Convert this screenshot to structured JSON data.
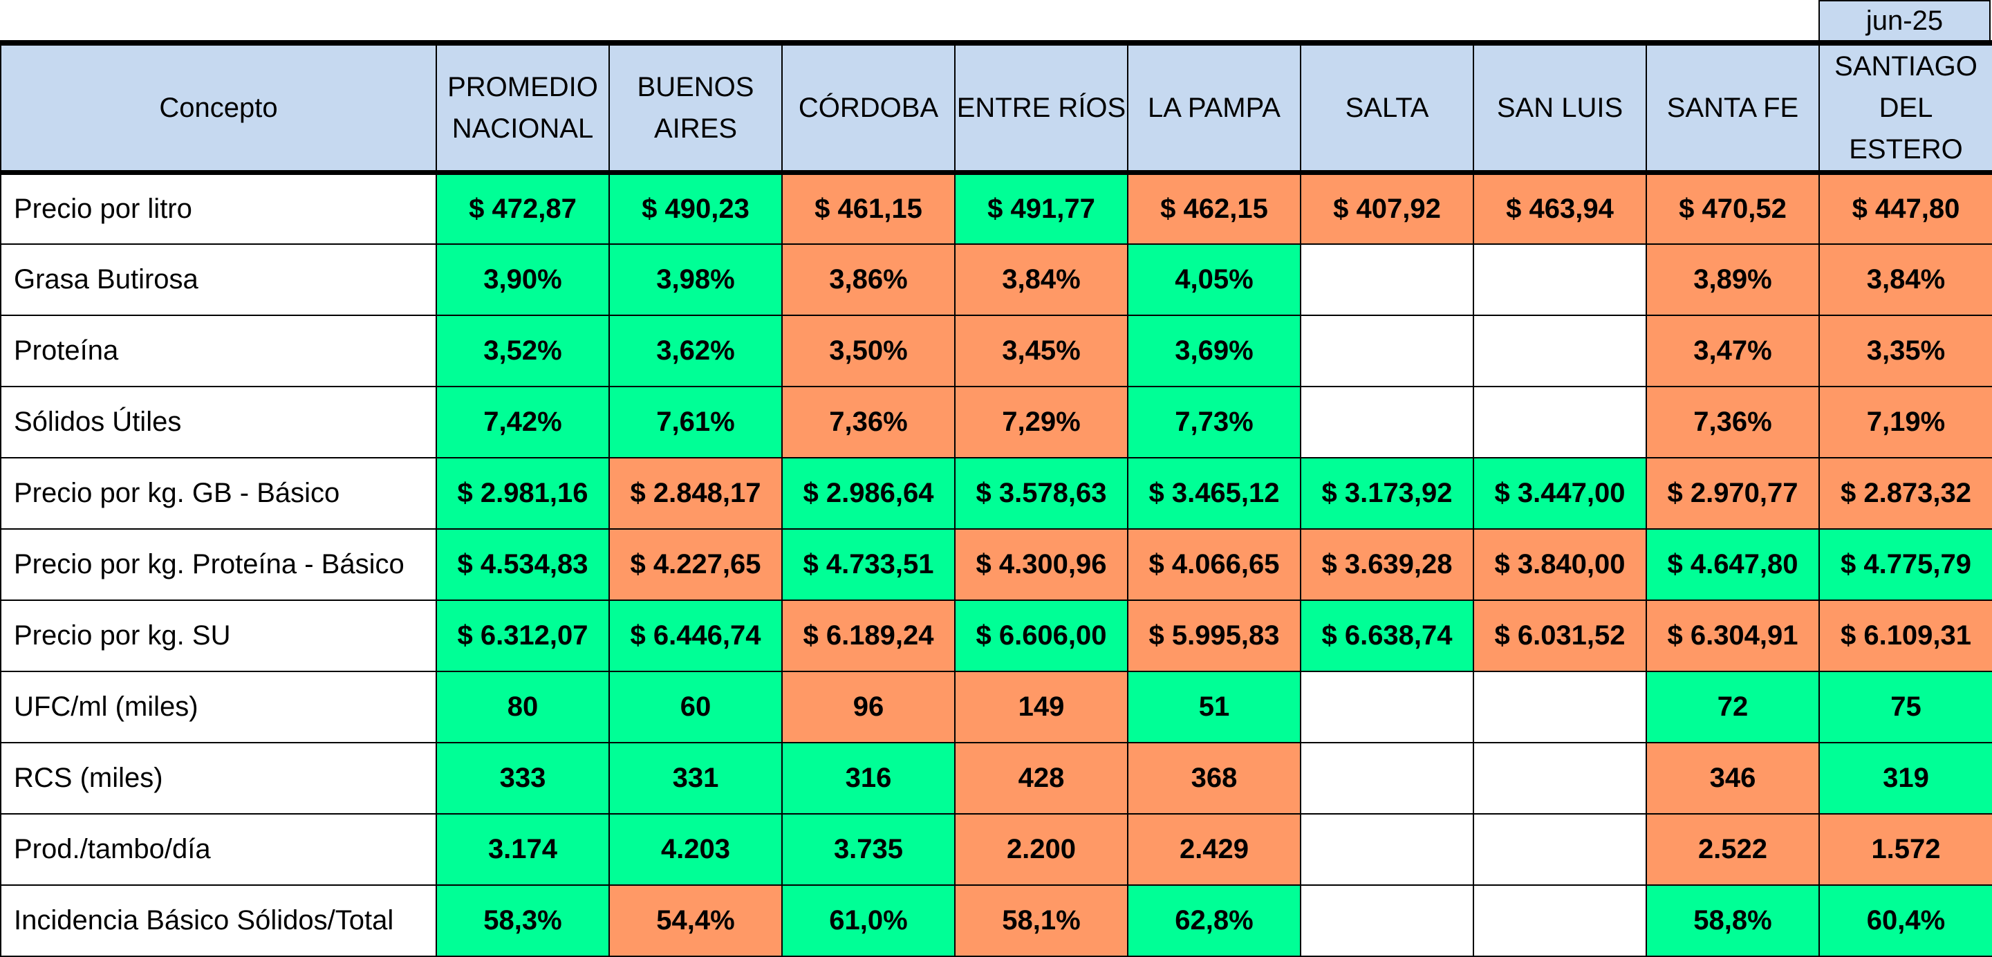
{
  "period": "jun-25",
  "colors": {
    "green": "#00ff96",
    "orange": "#ff9966",
    "header": "#c6d9f0"
  },
  "columns": [
    "Concepto",
    "PROMEDIO\nNACIONAL",
    "BUENOS\nAIRES",
    "CÓRDOBA",
    "ENTRE RÍOS",
    "LA PAMPA",
    "SALTA",
    "SAN LUIS",
    "SANTA FE",
    "SANTIAGO\nDEL ESTERO"
  ],
  "rows": [
    {
      "label": "Precio por litro",
      "cells": [
        {
          "v": "$ 472,87",
          "c": "g"
        },
        {
          "v": "$ 490,23",
          "c": "g"
        },
        {
          "v": "$ 461,15",
          "c": "o"
        },
        {
          "v": "$ 491,77",
          "c": "g"
        },
        {
          "v": "$ 462,15",
          "c": "o"
        },
        {
          "v": "$ 407,92",
          "c": "o"
        },
        {
          "v": "$ 463,94",
          "c": "o"
        },
        {
          "v": "$ 470,52",
          "c": "o"
        },
        {
          "v": "$ 447,80",
          "c": "o"
        }
      ]
    },
    {
      "label": "Grasa Butirosa",
      "cells": [
        {
          "v": "3,90%",
          "c": "g"
        },
        {
          "v": "3,98%",
          "c": "g"
        },
        {
          "v": "3,86%",
          "c": "o"
        },
        {
          "v": "3,84%",
          "c": "o"
        },
        {
          "v": "4,05%",
          "c": "g"
        },
        {
          "v": "",
          "c": "w"
        },
        {
          "v": "",
          "c": "w"
        },
        {
          "v": "3,89%",
          "c": "o"
        },
        {
          "v": "3,84%",
          "c": "o"
        }
      ]
    },
    {
      "label": "Proteína",
      "cells": [
        {
          "v": "3,52%",
          "c": "g"
        },
        {
          "v": "3,62%",
          "c": "g"
        },
        {
          "v": "3,50%",
          "c": "o"
        },
        {
          "v": "3,45%",
          "c": "o"
        },
        {
          "v": "3,69%",
          "c": "g"
        },
        {
          "v": "",
          "c": "w"
        },
        {
          "v": "",
          "c": "w"
        },
        {
          "v": "3,47%",
          "c": "o"
        },
        {
          "v": "3,35%",
          "c": "o"
        }
      ]
    },
    {
      "label": "Sólidos Útiles",
      "cells": [
        {
          "v": "7,42%",
          "c": "g"
        },
        {
          "v": "7,61%",
          "c": "g"
        },
        {
          "v": "7,36%",
          "c": "o"
        },
        {
          "v": "7,29%",
          "c": "o"
        },
        {
          "v": "7,73%",
          "c": "g"
        },
        {
          "v": "",
          "c": "w"
        },
        {
          "v": "",
          "c": "w"
        },
        {
          "v": "7,36%",
          "c": "o"
        },
        {
          "v": "7,19%",
          "c": "o"
        }
      ]
    },
    {
      "label": "Precio por kg. GB - Básico",
      "cells": [
        {
          "v": "$ 2.981,16",
          "c": "g"
        },
        {
          "v": "$ 2.848,17",
          "c": "o"
        },
        {
          "v": "$ 2.986,64",
          "c": "g"
        },
        {
          "v": "$ 3.578,63",
          "c": "g"
        },
        {
          "v": "$ 3.465,12",
          "c": "g"
        },
        {
          "v": "$ 3.173,92",
          "c": "g"
        },
        {
          "v": "$ 3.447,00",
          "c": "g"
        },
        {
          "v": "$ 2.970,77",
          "c": "o"
        },
        {
          "v": "$ 2.873,32",
          "c": "o"
        }
      ]
    },
    {
      "label": "Precio por kg. Proteína - Básico",
      "cells": [
        {
          "v": "$ 4.534,83",
          "c": "g"
        },
        {
          "v": "$ 4.227,65",
          "c": "o"
        },
        {
          "v": "$ 4.733,51",
          "c": "g"
        },
        {
          "v": "$ 4.300,96",
          "c": "o"
        },
        {
          "v": "$ 4.066,65",
          "c": "o"
        },
        {
          "v": "$ 3.639,28",
          "c": "o"
        },
        {
          "v": "$ 3.840,00",
          "c": "o"
        },
        {
          "v": "$ 4.647,80",
          "c": "g"
        },
        {
          "v": "$ 4.775,79",
          "c": "g"
        }
      ]
    },
    {
      "label": "Precio por kg. SU",
      "cells": [
        {
          "v": "$ 6.312,07",
          "c": "g"
        },
        {
          "v": "$ 6.446,74",
          "c": "g"
        },
        {
          "v": "$ 6.189,24",
          "c": "o"
        },
        {
          "v": "$ 6.606,00",
          "c": "g"
        },
        {
          "v": "$ 5.995,83",
          "c": "o"
        },
        {
          "v": "$ 6.638,74",
          "c": "g"
        },
        {
          "v": "$ 6.031,52",
          "c": "o"
        },
        {
          "v": "$ 6.304,91",
          "c": "o"
        },
        {
          "v": "$ 6.109,31",
          "c": "o"
        }
      ]
    },
    {
      "label": "UFC/ml (miles)",
      "cells": [
        {
          "v": "80",
          "c": "g"
        },
        {
          "v": "60",
          "c": "g"
        },
        {
          "v": "96",
          "c": "o"
        },
        {
          "v": "149",
          "c": "o"
        },
        {
          "v": "51",
          "c": "g"
        },
        {
          "v": "",
          "c": "w"
        },
        {
          "v": "",
          "c": "w"
        },
        {
          "v": "72",
          "c": "g"
        },
        {
          "v": "75",
          "c": "g"
        }
      ]
    },
    {
      "label": "RCS (miles)",
      "cells": [
        {
          "v": "333",
          "c": "g"
        },
        {
          "v": "331",
          "c": "g"
        },
        {
          "v": "316",
          "c": "g"
        },
        {
          "v": "428",
          "c": "o"
        },
        {
          "v": "368",
          "c": "o"
        },
        {
          "v": "",
          "c": "w"
        },
        {
          "v": "",
          "c": "w"
        },
        {
          "v": "346",
          "c": "o"
        },
        {
          "v": "319",
          "c": "g"
        }
      ]
    },
    {
      "label": "Prod./tambo/día",
      "cells": [
        {
          "v": "3.174",
          "c": "g"
        },
        {
          "v": "4.203",
          "c": "g"
        },
        {
          "v": "3.735",
          "c": "g"
        },
        {
          "v": "2.200",
          "c": "o"
        },
        {
          "v": "2.429",
          "c": "o"
        },
        {
          "v": "",
          "c": "w"
        },
        {
          "v": "",
          "c": "w"
        },
        {
          "v": "2.522",
          "c": "o"
        },
        {
          "v": "1.572",
          "c": "o"
        }
      ]
    },
    {
      "label": "Incidencia Básico Sólidos/Total",
      "cells": [
        {
          "v": "58,3%",
          "c": "g"
        },
        {
          "v": "54,4%",
          "c": "o"
        },
        {
          "v": "61,0%",
          "c": "g"
        },
        {
          "v": "58,1%",
          "c": "o"
        },
        {
          "v": "62,8%",
          "c": "g"
        },
        {
          "v": "",
          "c": "w"
        },
        {
          "v": "",
          "c": "w"
        },
        {
          "v": "58,8%",
          "c": "g"
        },
        {
          "v": "60,4%",
          "c": "g"
        }
      ]
    }
  ]
}
